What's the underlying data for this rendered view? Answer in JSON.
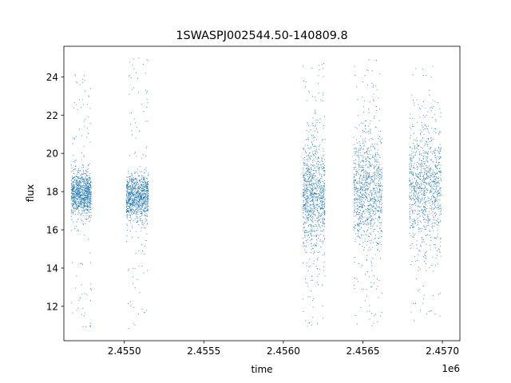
{
  "chart_data": {
    "type": "scatter",
    "title": "1SWASPJ002544.50-140809.8",
    "xlabel": "time",
    "ylabel": "flux",
    "x_offset_label": "1e6",
    "xlim": [
      2454620,
      2457110
    ],
    "ylim": [
      10.2,
      25.6
    ],
    "x_ticks": [
      2455000,
      2455500,
      2456000,
      2456500,
      2457000
    ],
    "x_tick_labels": [
      "2.4550",
      "2.4555",
      "2.4560",
      "2.4565",
      "2.4570"
    ],
    "y_ticks": [
      12,
      14,
      16,
      18,
      20,
      22,
      24
    ],
    "y_tick_labels": [
      "12",
      "14",
      "16",
      "18",
      "20",
      "22",
      "24"
    ],
    "grid": false,
    "point_color": "#1f77b4",
    "clusters": [
      {
        "x_start": 2454665,
        "x_end": 2454790,
        "y_center": 17.9,
        "y_core_spread": 0.55,
        "y_min": 10.9,
        "y_max": 24.2
      },
      {
        "x_start": 2455010,
        "x_end": 2455150,
        "y_center": 17.7,
        "y_core_spread": 0.6,
        "y_min": 10.8,
        "y_max": 25.1
      },
      {
        "x_start": 2456120,
        "x_end": 2456260,
        "y_center": 17.8,
        "y_core_spread": 1.4,
        "y_min": 10.8,
        "y_max": 24.8
      },
      {
        "x_start": 2456440,
        "x_end": 2456620,
        "y_center": 18.0,
        "y_core_spread": 1.5,
        "y_min": 10.8,
        "y_max": 25.0
      },
      {
        "x_start": 2456790,
        "x_end": 2456990,
        "y_center": 18.3,
        "y_core_spread": 1.6,
        "y_min": 11.0,
        "y_max": 25.0
      }
    ]
  }
}
